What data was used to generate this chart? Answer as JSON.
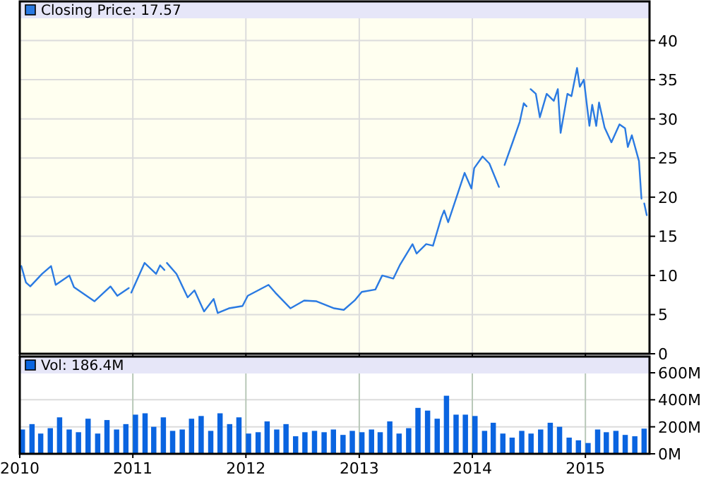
{
  "chart_data": [
    {
      "type": "line",
      "xlim": [
        "2010-01-01",
        "2015-07-27"
      ],
      "xticks": [
        "2010",
        "2011",
        "2012",
        "2013",
        "2014",
        "2015"
      ],
      "ylim": [
        0,
        45
      ],
      "yticks": [
        0,
        5,
        10,
        15,
        20,
        25,
        30,
        35,
        40
      ],
      "grid": true,
      "legend": "top left",
      "tick_labels": "y",
      "series": [
        {
          "name": "Closing Price: 17.57",
          "color": "#2a7ae2",
          "x": [
            "2010-01-06",
            "2010-01-21",
            "2010-02-04",
            "2010-03-14",
            "2010-04-12",
            "2010-04-27",
            "2010-06-10",
            "2010-06-25",
            "2010-08-30",
            "2010-10-21",
            "2010-11-12",
            "2010-12-19",
            "2010-12-23",
            "2010-12-27",
            "2011-02-08",
            "2011-03-17",
            "2011-03-30",
            "2011-04-13",
            "2011-04-17",
            "2011-04-21",
            "2011-05-22",
            "2011-06-27",
            "2011-07-19",
            "2011-08-19",
            "2011-09-19",
            "2011-10-02",
            "2011-11-07",
            "2011-12-21",
            "2012-01-07",
            "2012-03-14",
            "2012-04-05",
            "2012-05-24",
            "2012-07-07",
            "2012-08-16",
            "2012-10-12",
            "2012-11-12",
            "2012-12-17",
            "2013-01-09",
            "2013-02-22",
            "2013-03-16",
            "2013-04-21",
            "2013-05-13",
            "2013-06-22",
            "2013-07-05",
            "2013-08-05",
            "2013-08-27",
            "2013-09-23",
            "2013-10-02",
            "2013-10-15",
            "2013-12-07",
            "2013-12-29",
            "2014-01-07",
            "2014-02-03",
            "2014-02-25",
            "2014-03-28",
            "2014-04-06",
            "2014-04-15",
            "2014-05-11",
            "2014-06-03",
            "2014-06-16",
            "2014-06-25",
            "2014-07-01",
            "2014-07-08",
            "2014-07-25",
            "2014-08-07",
            "2014-08-29",
            "2014-09-21",
            "2014-10-04",
            "2014-10-13",
            "2014-11-04",
            "2014-11-17",
            "2014-12-05",
            "2014-12-14",
            "2014-12-27",
            "2015-01-14",
            "2015-01-23",
            "2015-02-05",
            "2015-02-14",
            "2015-03-04",
            "2015-03-26",
            "2015-04-21",
            "2015-05-09",
            "2015-05-18",
            "2015-05-31",
            "2015-06-23",
            "2015-07-01",
            "2015-07-05",
            "2015-07-10",
            "2015-07-18"
          ],
          "values": [
            11.2,
            9.1,
            8.6,
            10.2,
            11.2,
            8.8,
            10.0,
            8.5,
            6.7,
            8.6,
            7.4,
            8.4,
            null,
            7.8,
            11.6,
            10.2,
            11.3,
            10.7,
            null,
            11.6,
            10.2,
            7.2,
            8.1,
            5.4,
            7.0,
            5.2,
            5.8,
            6.1,
            7.4,
            8.8,
            7.8,
            5.8,
            6.8,
            6.7,
            5.8,
            5.6,
            6.8,
            7.9,
            8.2,
            10.0,
            9.6,
            11.4,
            14.0,
            12.8,
            14.0,
            13.8,
            17.4,
            18.3,
            16.8,
            23.1,
            21.1,
            23.7,
            25.2,
            24.3,
            21.3,
            null,
            24.1,
            27.0,
            29.6,
            32.0,
            31.6,
            null,
            33.8,
            33.2,
            30.2,
            33.2,
            32.3,
            33.8,
            28.2,
            33.2,
            32.9,
            36.5,
            34.1,
            35.0,
            29.1,
            31.8,
            29.1,
            32.1,
            28.9,
            27.0,
            29.3,
            28.8,
            26.4,
            27.9,
            24.6,
            19.8,
            null,
            19.2,
            17.7
          ]
        }
      ]
    },
    {
      "type": "bar",
      "xlim": [
        "2010-01-01",
        "2015-07-27"
      ],
      "xticks": [
        "2010",
        "2011",
        "2012",
        "2013",
        "2014",
        "2015"
      ],
      "ylim": [
        0,
        720
      ],
      "yticks": [
        {
          "value": 0,
          "label": "0M"
        },
        {
          "value": 200,
          "label": "200M"
        },
        {
          "value": 400,
          "label": "400M"
        },
        {
          "value": 600,
          "label": "600M"
        }
      ],
      "grid": true,
      "legend": "top left",
      "x": [
        "2010-01",
        "2010-02",
        "2010-03",
        "2010-04",
        "2010-05",
        "2010-06",
        "2010-07",
        "2010-08",
        "2010-09",
        "2010-10",
        "2010-11",
        "2010-12",
        "2011-01",
        "2011-02",
        "2011-03",
        "2011-04",
        "2011-05",
        "2011-06",
        "2011-07",
        "2011-08",
        "2011-09",
        "2011-10",
        "2011-11",
        "2011-12",
        "2012-01",
        "2012-02",
        "2012-03",
        "2012-04",
        "2012-05",
        "2012-06",
        "2012-07",
        "2012-08",
        "2012-09",
        "2012-10",
        "2012-11",
        "2012-12",
        "2013-01",
        "2013-02",
        "2013-03",
        "2013-04",
        "2013-05",
        "2013-06",
        "2013-07",
        "2013-08",
        "2013-09",
        "2013-10",
        "2013-11",
        "2013-12",
        "2014-01",
        "2014-02",
        "2014-03",
        "2014-04",
        "2014-05",
        "2014-06",
        "2014-07",
        "2014-08",
        "2014-09",
        "2014-10",
        "2014-11",
        "2014-12",
        "2015-01",
        "2015-02",
        "2015-03",
        "2015-04",
        "2015-05",
        "2015-06",
        "2015-07"
      ],
      "series": [
        {
          "name": "Vol: 186.4M",
          "color": "#0a64e0",
          "values": [
            180,
            220,
            150,
            190,
            270,
            180,
            160,
            260,
            150,
            250,
            180,
            220,
            290,
            300,
            200,
            270,
            170,
            180,
            260,
            280,
            170,
            300,
            220,
            270,
            150,
            160,
            240,
            180,
            220,
            130,
            160,
            170,
            160,
            180,
            140,
            170,
            160,
            180,
            160,
            240,
            150,
            190,
            340,
            320,
            260,
            430,
            290,
            290,
            280,
            170,
            230,
            150,
            120,
            170,
            150,
            180,
            230,
            200,
            120,
            100,
            80,
            180,
            160,
            170,
            140,
            130,
            186.4
          ]
        }
      ]
    }
  ]
}
